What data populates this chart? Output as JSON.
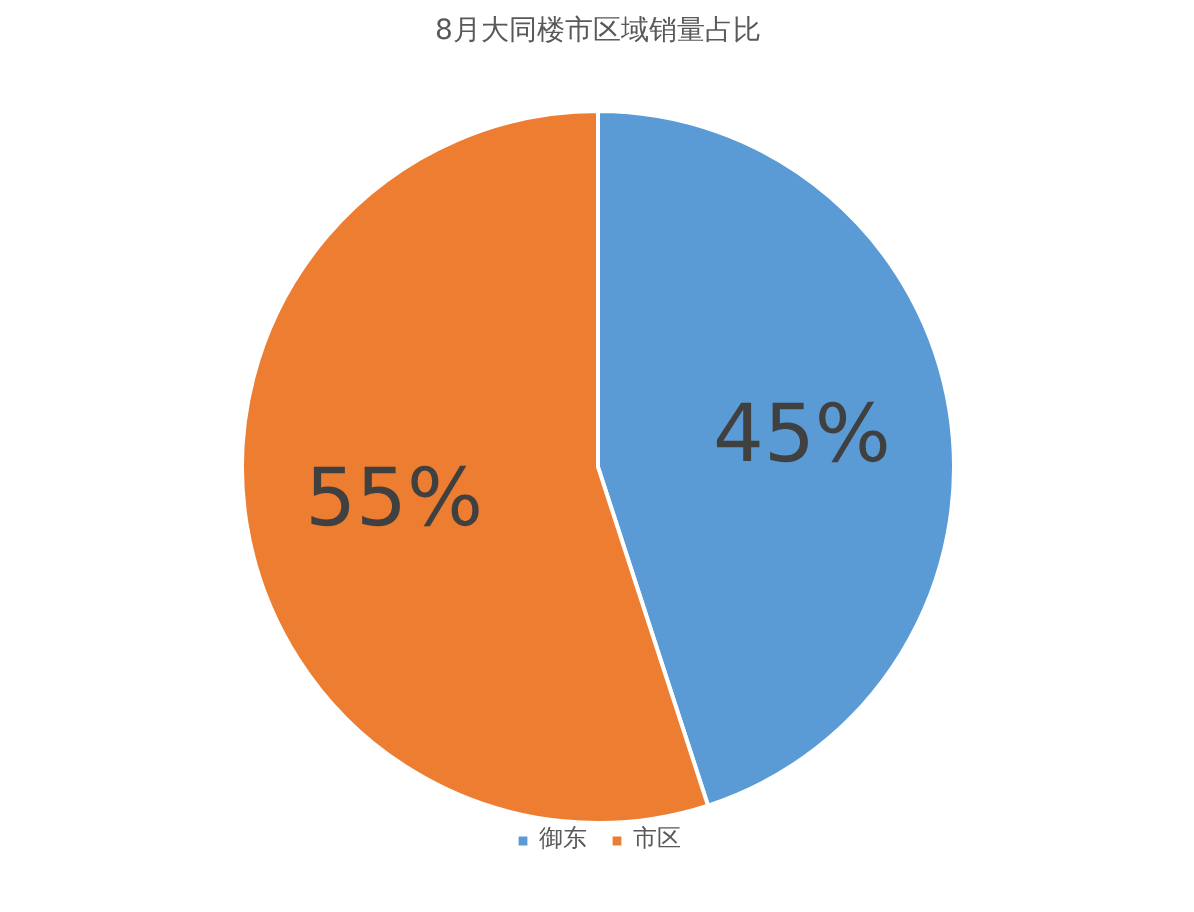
{
  "chart_data": {
    "type": "pie",
    "title": "8月大同楼市区域销量占比",
    "categories": [
      "御东",
      "市区"
    ],
    "values": [
      45,
      55
    ],
    "colors": [
      "#5b9bd5",
      "#ed7d31"
    ],
    "data_labels": true,
    "value_labels": [
      "45%",
      "55%"
    ],
    "legend": "bottom"
  }
}
